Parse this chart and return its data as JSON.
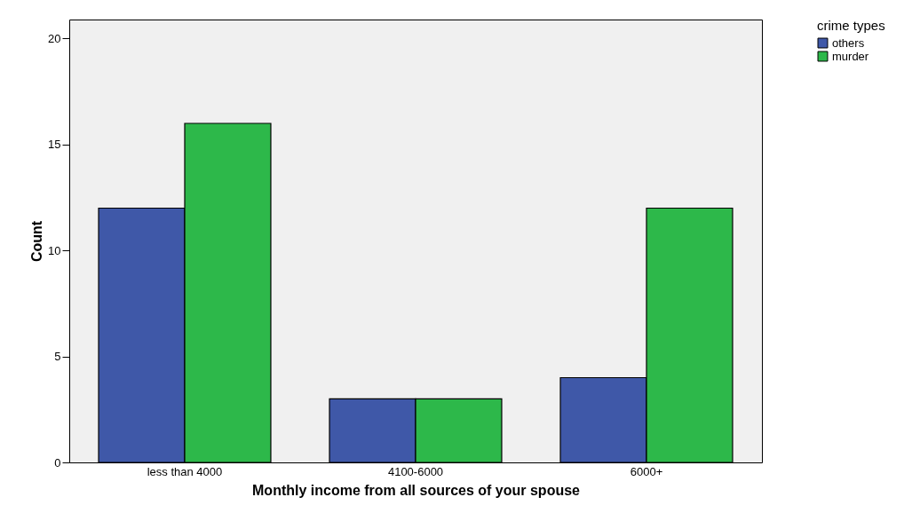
{
  "chart_data": {
    "type": "bar",
    "xlabel": "Monthly income from all sources of your spouse",
    "ylabel": "Count",
    "legend_title": "crime types",
    "categories": [
      "less than 4000",
      "4100-6000",
      "6000+"
    ],
    "series": [
      {
        "name": "others",
        "color": "#3f58a8",
        "values": [
          12,
          3,
          4
        ]
      },
      {
        "name": "murder",
        "color": "#2db84a",
        "values": [
          16,
          3,
          12
        ]
      }
    ],
    "ylim": [
      0,
      20.9
    ],
    "yticks": [
      0,
      5,
      10,
      15,
      20
    ],
    "grid": false,
    "legend": "top right"
  }
}
